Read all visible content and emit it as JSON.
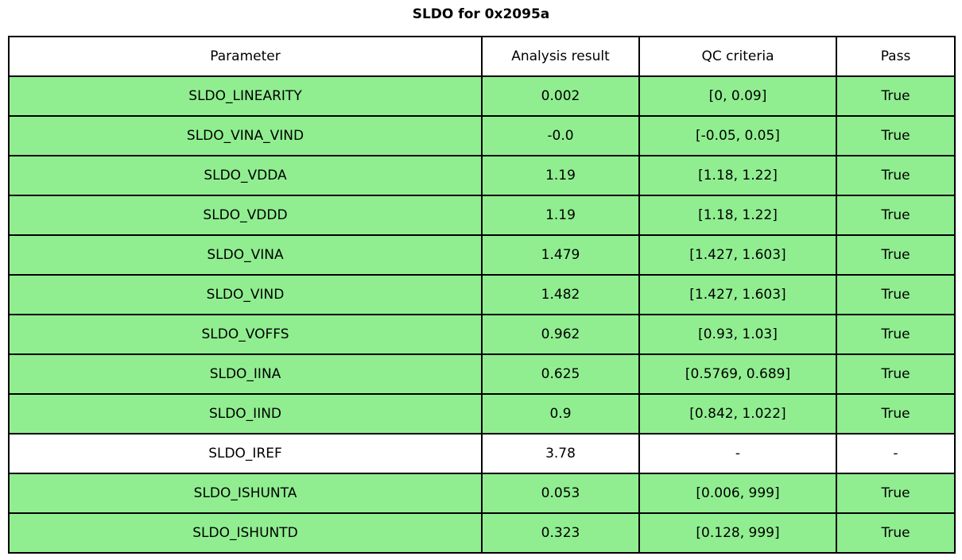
{
  "title": "SLDO for 0x2095a",
  "colors": {
    "pass_row_bg": "#90ee90",
    "neutral_row_bg": "#ffffff",
    "border": "#000000",
    "text": "#000000"
  },
  "table": {
    "columns": [
      "Parameter",
      "Analysis result",
      "QC criteria",
      "Pass"
    ],
    "rows": [
      {
        "parameter": "SLDO_LINEARITY",
        "analysis_result": "0.002",
        "qc_criteria": "[0, 0.09]",
        "pass": "True"
      },
      {
        "parameter": "SLDO_VINA_VIND",
        "analysis_result": "-0.0",
        "qc_criteria": "[-0.05, 0.05]",
        "pass": "True"
      },
      {
        "parameter": "SLDO_VDDA",
        "analysis_result": "1.19",
        "qc_criteria": "[1.18, 1.22]",
        "pass": "True"
      },
      {
        "parameter": "SLDO_VDDD",
        "analysis_result": "1.19",
        "qc_criteria": "[1.18, 1.22]",
        "pass": "True"
      },
      {
        "parameter": "SLDO_VINA",
        "analysis_result": "1.479",
        "qc_criteria": "[1.427, 1.603]",
        "pass": "True"
      },
      {
        "parameter": "SLDO_VIND",
        "analysis_result": "1.482",
        "qc_criteria": "[1.427, 1.603]",
        "pass": "True"
      },
      {
        "parameter": "SLDO_VOFFS",
        "analysis_result": "0.962",
        "qc_criteria": "[0.93, 1.03]",
        "pass": "True"
      },
      {
        "parameter": "SLDO_IINA",
        "analysis_result": "0.625",
        "qc_criteria": "[0.5769, 0.689]",
        "pass": "True"
      },
      {
        "parameter": "SLDO_IIND",
        "analysis_result": "0.9",
        "qc_criteria": "[0.842, 1.022]",
        "pass": "True"
      },
      {
        "parameter": "SLDO_IREF",
        "analysis_result": "3.78",
        "qc_criteria": "-",
        "pass": "-"
      },
      {
        "parameter": "SLDO_ISHUNTA",
        "analysis_result": "0.053",
        "qc_criteria": "[0.006, 999]",
        "pass": "True"
      },
      {
        "parameter": "SLDO_ISHUNTD",
        "analysis_result": "0.323",
        "qc_criteria": "[0.128, 999]",
        "pass": "True"
      }
    ]
  },
  "chart_data": {
    "type": "table",
    "title": "SLDO for 0x2095a",
    "columns": [
      "Parameter",
      "Analysis result",
      "QC criteria",
      "Pass"
    ],
    "rows": [
      [
        "SLDO_LINEARITY",
        "0.002",
        "[0, 0.09]",
        "True"
      ],
      [
        "SLDO_VINA_VIND",
        "-0.0",
        "[-0.05, 0.05]",
        "True"
      ],
      [
        "SLDO_VDDA",
        "1.19",
        "[1.18, 1.22]",
        "True"
      ],
      [
        "SLDO_VDDD",
        "1.19",
        "[1.18, 1.22]",
        "True"
      ],
      [
        "SLDO_VINA",
        "1.479",
        "[1.427, 1.603]",
        "True"
      ],
      [
        "SLDO_VIND",
        "1.482",
        "[1.427, 1.603]",
        "True"
      ],
      [
        "SLDO_VOFFS",
        "0.962",
        "[0.93, 1.03]",
        "True"
      ],
      [
        "SLDO_IINA",
        "0.625",
        "[0.5769, 0.689]",
        "True"
      ],
      [
        "SLDO_IIND",
        "0.9",
        "[0.842, 1.022]",
        "True"
      ],
      [
        "SLDO_IREF",
        "3.78",
        "-",
        "-"
      ],
      [
        "SLDO_ISHUNTA",
        "0.053",
        "[0.006, 999]",
        "True"
      ],
      [
        "SLDO_ISHUNTD",
        "0.323",
        "[0.128, 999]",
        "True"
      ]
    ],
    "row_highlight": {
      "pass_color": "#90ee90",
      "neutral_color": "#ffffff",
      "pass_rows": [
        0,
        1,
        2,
        3,
        4,
        5,
        6,
        7,
        8,
        10,
        11
      ],
      "neutral_rows": [
        9
      ]
    },
    "layout": {
      "grid": "full-borders",
      "legend": "none"
    }
  }
}
